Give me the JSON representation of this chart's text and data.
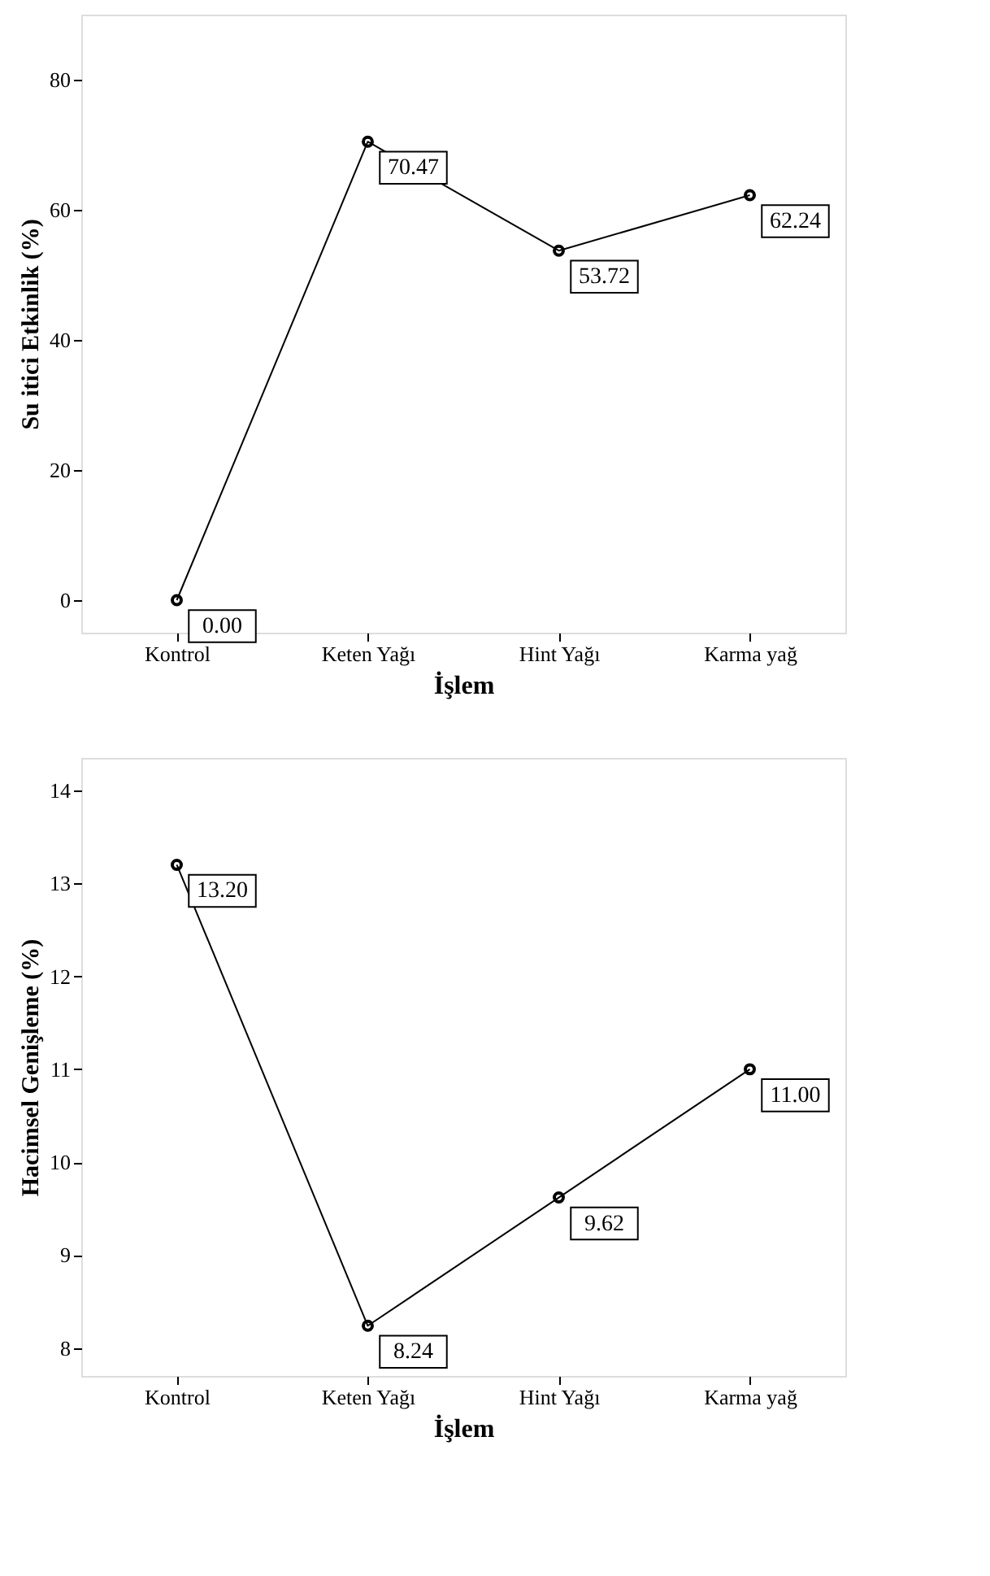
{
  "chart_data": [
    {
      "type": "line",
      "xlabel": "İşlem",
      "ylabel": "Su itici Etkinlik (%)",
      "categories": [
        "Kontrol",
        "Keten Yağı",
        "Hint Yağı",
        "Karma yağ"
      ],
      "series": [
        {
          "color": "#000000",
          "values": [
            0.0,
            70.47,
            53.72,
            62.24
          ],
          "value_labels": [
            "0.00",
            "70.47",
            "53.72",
            "62.24"
          ]
        }
      ],
      "ylim": [
        -5,
        90
      ],
      "yticks": [
        0,
        20,
        40,
        60,
        80
      ],
      "grid": false,
      "marker": "circle",
      "line_style": "solid"
    },
    {
      "type": "line",
      "xlabel": "İşlem",
      "ylabel": "Hacimsel Genişleme (%)",
      "categories": [
        "Kontrol",
        "Keten Yağı",
        "Hint Yağı",
        "Karma yağ"
      ],
      "series": [
        {
          "color": "#000000",
          "values": [
            13.2,
            8.24,
            9.62,
            11.0
          ],
          "value_labels": [
            "13.20",
            "8.24",
            "9.62",
            "11.00"
          ]
        }
      ],
      "ylim": [
        7.7,
        14.35
      ],
      "yticks": [
        {
          "value": 8,
          "label": "8"
        },
        {
          "value": 9,
          "label": "9"
        },
        {
          "value": 10,
          "label": "10"
        },
        {
          "value": 11,
          "label": "11"
        },
        {
          "value": 12,
          "label": "12"
        },
        {
          "value": 13,
          "label": "13"
        },
        {
          "value": 14,
          "label": "14"
        }
      ],
      "grid": false,
      "marker": "circle",
      "line_style": "solid"
    }
  ]
}
